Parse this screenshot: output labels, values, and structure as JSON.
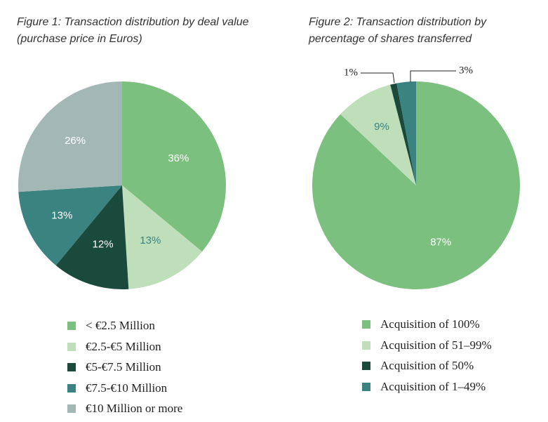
{
  "chart_data": [
    {
      "type": "pie",
      "title": "Figure 1: Transaction distribution by deal value (purchase price in Euros)",
      "categories": [
        "< €2.5 Million",
        "€2.5-€5 Million",
        "€5-€7.5 Million",
        "€7.5-€10 Million",
        "€10 Million or more"
      ],
      "values": [
        36,
        13,
        12,
        13,
        26
      ],
      "labels": [
        "36%",
        "13%",
        "12%",
        "13%",
        "26%"
      ],
      "colors": [
        "#7cc07f",
        "#bfdeba",
        "#1a4a3c",
        "#3a8380",
        "#a3b8b4"
      ],
      "label_colors": [
        "#ffffff",
        "#3a8380",
        "#ffffff",
        "#ffffff",
        "#ffffff"
      ],
      "legend_position": "bottom"
    },
    {
      "type": "pie",
      "title": "Figure 2: Transaction distribution by percentage of shares transferred",
      "categories": [
        "Acquisition of 100%",
        "Acquisition of 51–99%",
        "Acquisition of 50%",
        "Acquisition of 1–49%"
      ],
      "values": [
        87,
        9,
        1,
        3
      ],
      "labels": [
        "87%",
        "9%",
        "1%",
        "3%"
      ],
      "colors": [
        "#7cc07f",
        "#bfdeba",
        "#1a4a3c",
        "#3a8380"
      ],
      "label_colors": [
        "#ffffff",
        "#3a8380",
        "#222222",
        "#222222"
      ],
      "legend_position": "bottom"
    }
  ]
}
